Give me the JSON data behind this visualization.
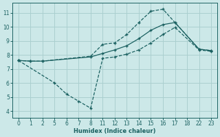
{
  "xlabel": "Humidex (Indice chaleur)",
  "bg_color": "#cce8e8",
  "grid_color": "#aacfcf",
  "line_color": "#1a6060",
  "tick_labels": [
    "0",
    "1",
    "2",
    "5",
    "6",
    "7",
    "8",
    "11",
    "12",
    "13",
    "14",
    "15",
    "16",
    "17",
    "18",
    "22",
    "23"
  ],
  "yticks": [
    4,
    5,
    6,
    7,
    8,
    9,
    10,
    11
  ],
  "ylim": [
    3.5,
    11.7
  ],
  "line1_idx": [
    0,
    1,
    2,
    6,
    7,
    8,
    9,
    10,
    11,
    12,
    13,
    15,
    16
  ],
  "line1_y": [
    7.6,
    7.55,
    7.55,
    7.9,
    8.75,
    8.85,
    9.45,
    10.3,
    11.1,
    11.25,
    10.3,
    8.4,
    8.3
  ],
  "line2_idx": [
    0,
    1,
    2,
    6,
    7,
    8,
    9,
    10,
    11,
    12,
    13,
    15,
    16
  ],
  "line2_y": [
    7.6,
    7.55,
    7.55,
    7.85,
    8.1,
    8.35,
    8.65,
    9.15,
    9.75,
    10.15,
    10.3,
    8.4,
    8.3
  ],
  "line3_idx": [
    0,
    3,
    4,
    5,
    6,
    7,
    8,
    9,
    10,
    11,
    12,
    13,
    15,
    16
  ],
  "line3_y": [
    7.6,
    6.0,
    5.2,
    4.7,
    4.2,
    7.75,
    7.85,
    8.05,
    8.35,
    8.85,
    9.45,
    9.95,
    8.35,
    8.25
  ]
}
